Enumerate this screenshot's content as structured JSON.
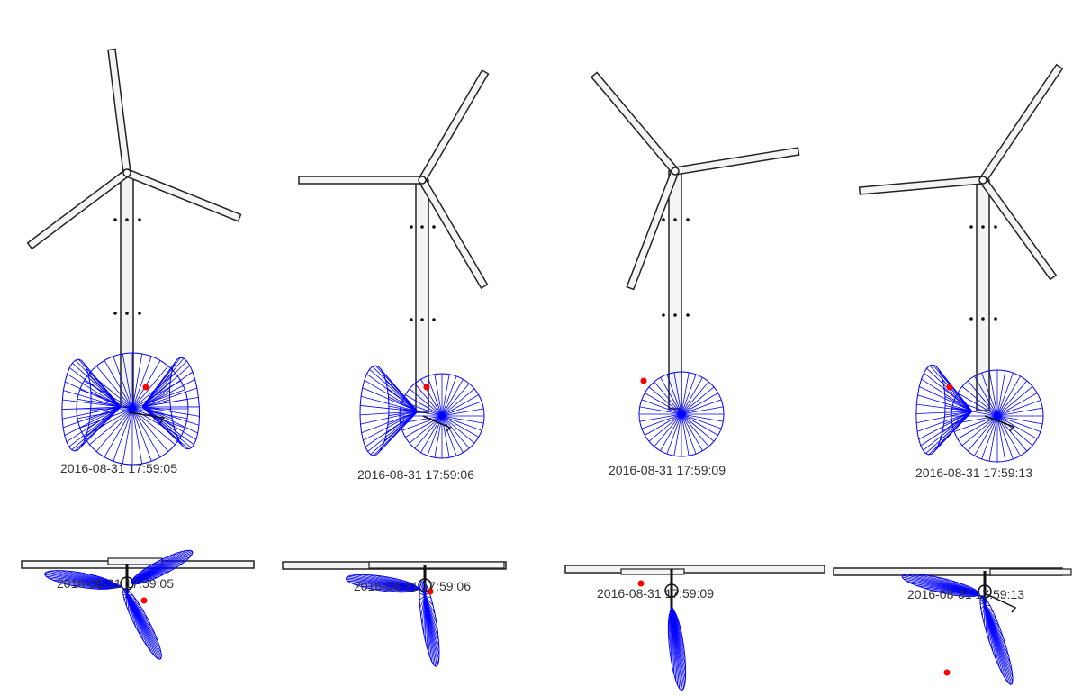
{
  "colors": {
    "structure": "#222222",
    "structure_fill": "#f4f4f4",
    "sensor_cone": "#0000ff",
    "target_dot": "#ff0000",
    "label": "#333333"
  },
  "front_views": [
    {
      "timestamp": "2016-08-31 17:59:05",
      "cones": [
        "left",
        "front",
        "right"
      ]
    },
    {
      "timestamp": "2016-08-31 17:59:06",
      "cones": [
        "left",
        "front"
      ]
    },
    {
      "timestamp": "2016-08-31 17:59:09",
      "cones": [
        "front"
      ]
    },
    {
      "timestamp": "2016-08-31 17:59:13",
      "cones": [
        "left",
        "front"
      ]
    }
  ],
  "top_views": [
    {
      "timestamp": "2016-08-31 17:59:05"
    },
    {
      "timestamp": "2016-08-31 17:59:06"
    },
    {
      "timestamp": "2016-08-31 17:59:09"
    },
    {
      "timestamp": "2016-08-31 17:59:13"
    }
  ]
}
